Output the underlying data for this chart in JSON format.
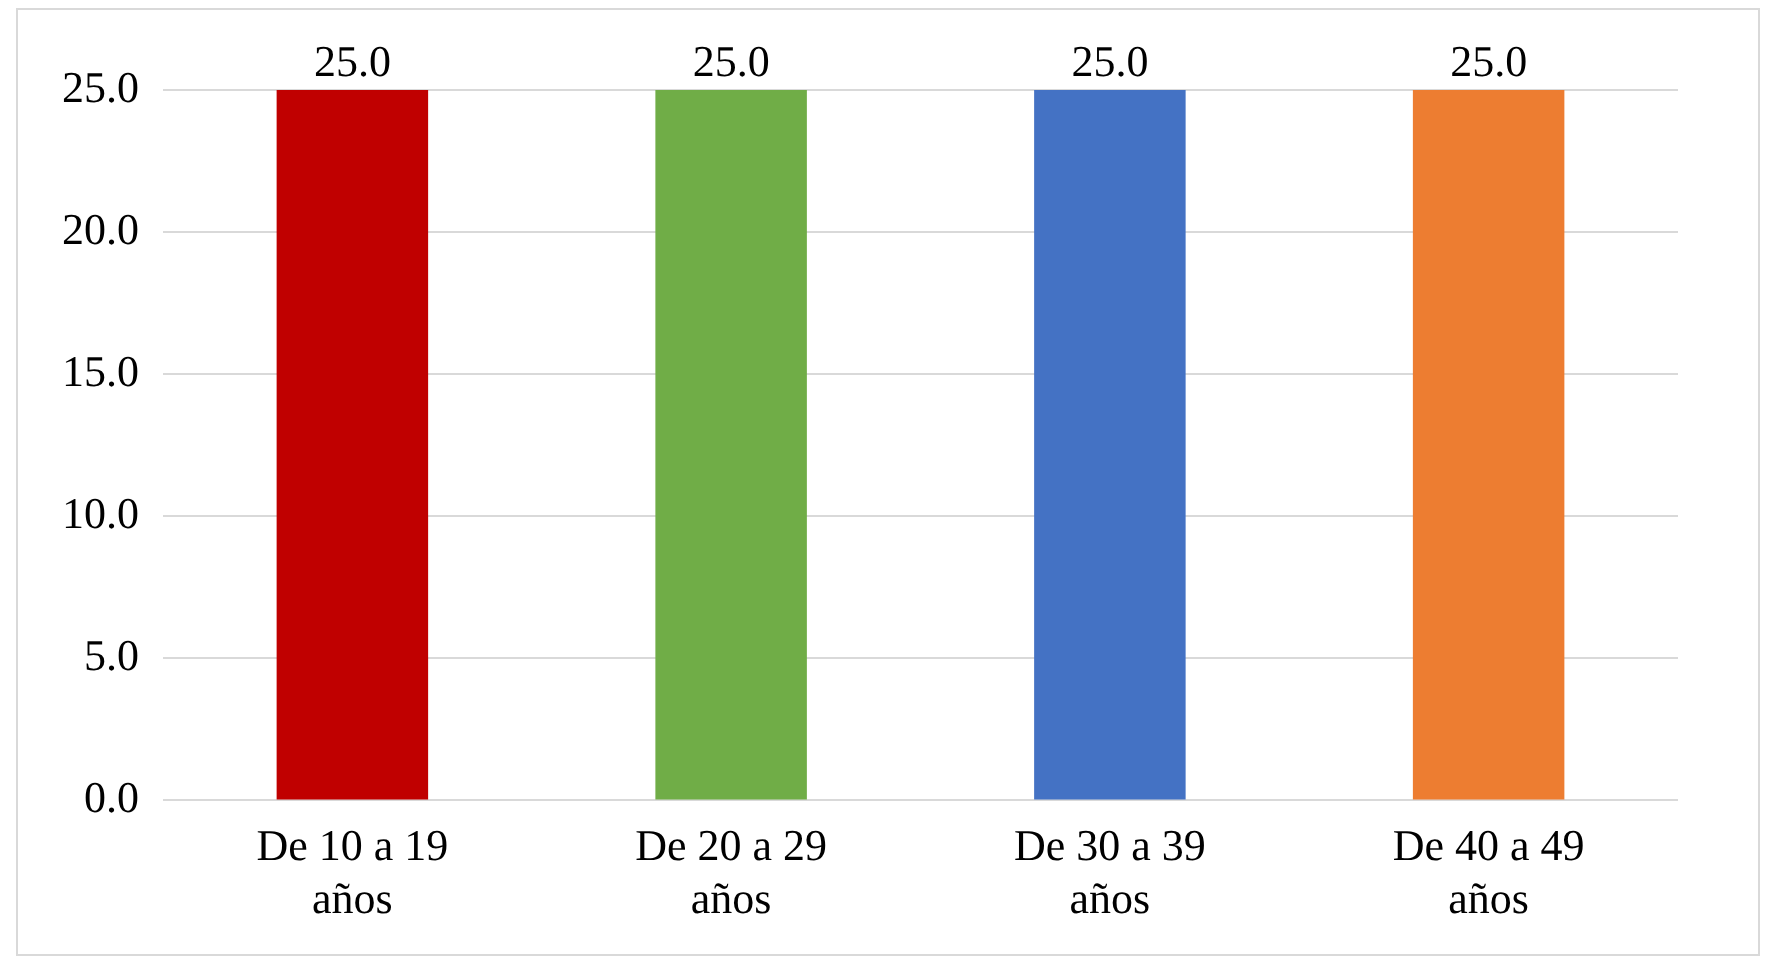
{
  "chart_data": {
    "type": "bar",
    "categories": [
      "De 10 a 19 años",
      "De 20 a 29 años",
      "De 30 a 39 años",
      "De 40 a 49 años"
    ],
    "values": [
      25.0,
      25.0,
      25.0,
      25.0
    ],
    "colors": [
      "#c00000",
      "#70ad47",
      "#4472c4",
      "#ed7d31"
    ],
    "value_labels": [
      "25.0",
      "25.0",
      "25.0",
      "25.0"
    ],
    "ylim": [
      0,
      25
    ],
    "yticks": [
      {
        "value": 0,
        "label": "0.0"
      },
      {
        "value": 5,
        "label": "5.0"
      },
      {
        "value": 10,
        "label": "10.0"
      },
      {
        "value": 15,
        "label": "15.0"
      },
      {
        "value": 20,
        "label": "20.0"
      },
      {
        "value": 25,
        "label": "25.0"
      }
    ],
    "grid": "y",
    "legend": false
  }
}
